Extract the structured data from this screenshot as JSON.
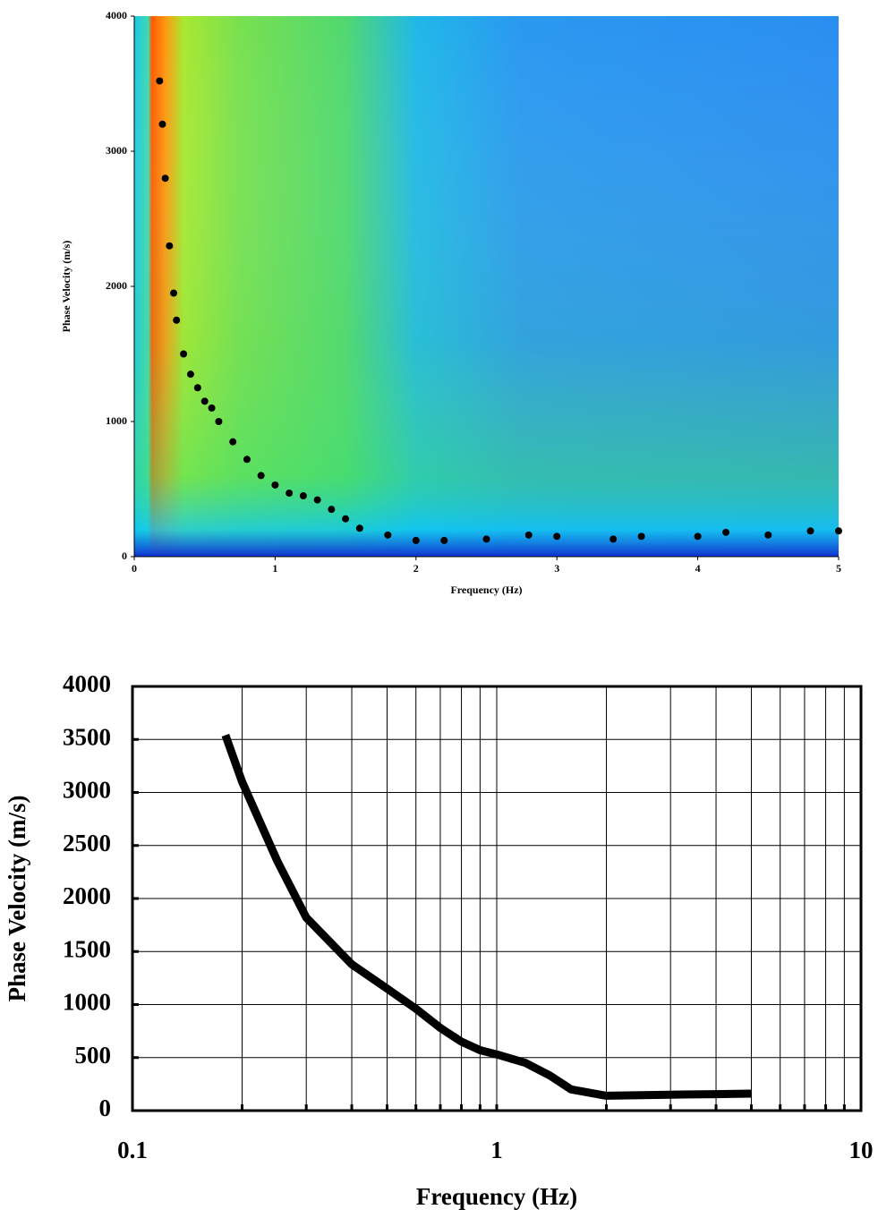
{
  "chart_data": [
    {
      "type": "scatter",
      "xlabel": "Frequency (Hz)",
      "ylabel": "Phase Velocity (m/s)",
      "x": [
        0.18,
        0.2,
        0.22,
        0.25,
        0.28,
        0.3,
        0.35,
        0.4,
        0.45,
        0.5,
        0.55,
        0.6,
        0.7,
        0.8,
        0.9,
        1.0,
        1.1,
        1.2,
        1.3,
        1.4,
        1.5,
        1.6,
        1.8,
        2.0,
        2.2,
        2.5,
        2.8,
        3.0,
        3.4,
        3.6,
        4.0,
        4.2,
        4.5,
        4.8,
        5.0
      ],
      "values": [
        3520,
        3200,
        2800,
        2300,
        1950,
        1750,
        1500,
        1350,
        1250,
        1150,
        1100,
        1000,
        850,
        720,
        600,
        530,
        470,
        450,
        420,
        350,
        280,
        210,
        160,
        120,
        120,
        130,
        160,
        150,
        130,
        150,
        150,
        180,
        160,
        190,
        190
      ],
      "color": "#000000",
      "xlim": [
        0,
        5
      ],
      "xticks": [
        0,
        1,
        2,
        3,
        4,
        5
      ],
      "ylim": [
        0,
        4000
      ],
      "yticks": [
        0,
        1000,
        2000,
        3000,
        4000
      ]
    },
    {
      "type": "line",
      "xlabel": "Frequency (Hz)",
      "ylabel": "Phase Velocity (m/s)",
      "x": [
        0.18,
        0.2,
        0.25,
        0.3,
        0.4,
        0.5,
        0.6,
        0.7,
        0.8,
        0.9,
        1.0,
        1.2,
        1.4,
        1.6,
        2.0,
        2.5,
        3.0,
        4.0,
        5.0
      ],
      "values": [
        3540,
        3100,
        2350,
        1820,
        1380,
        1150,
        960,
        780,
        650,
        570,
        530,
        450,
        330,
        200,
        140,
        145,
        150,
        155,
        160
      ],
      "color": "#000000",
      "xscale": "log",
      "xlim": [
        0.1,
        10
      ],
      "xticks": [
        0.1,
        1,
        10
      ],
      "x_minor_ticks": [
        0.2,
        0.3,
        0.4,
        0.5,
        0.6,
        0.7,
        0.8,
        0.9,
        2,
        3,
        4,
        5,
        6,
        7,
        8,
        9
      ],
      "ylim": [
        0,
        4000
      ],
      "yticks": [
        0,
        500,
        1000,
        1500,
        2000,
        2500,
        3000,
        3500,
        4000
      ],
      "grid": true
    }
  ]
}
